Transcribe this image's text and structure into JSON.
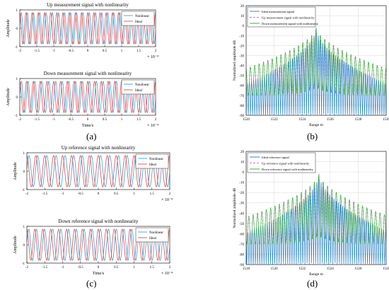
{
  "colors": {
    "nonlinear": "#3aa0d8",
    "ideal": "#e8484a",
    "spectrum_ideal": "#2f86c8",
    "spectrum_up": "#d86cd8",
    "spectrum_down": "#2db82d"
  },
  "subfig": {
    "a": "(a)",
    "b": "(b)",
    "c": "(c)",
    "d": "(d)"
  },
  "chart_data": [
    {
      "id": "a1",
      "type": "line",
      "title": "Up measurement signal with nonlinearity",
      "xlabel": "",
      "ylabel": "Amplitude",
      "xlim": [
        -2,
        2
      ],
      "ylim": [
        -1,
        1
      ],
      "x_ticks": [
        "-2",
        "-1.5",
        "-1",
        "-0.5",
        "0",
        "0.5",
        "1",
        "1.5",
        "2"
      ],
      "y_ticks": [
        "-1",
        "0",
        "1"
      ],
      "x_exponent": "× 10⁻⁴",
      "cycles": 22,
      "phase_shift": 0.25,
      "series": [
        {
          "name": "Nonlinear"
        },
        {
          "name": "Ideal"
        }
      ],
      "legend": "top-right"
    },
    {
      "id": "a2",
      "type": "line",
      "title": "Down measurement signal with nonlinearity",
      "xlabel": "Time/s",
      "ylabel": "Amplitude",
      "xlim": [
        -2,
        2
      ],
      "ylim": [
        -1,
        1
      ],
      "x_ticks": [
        "-2",
        "-1.5",
        "-1",
        "-0.5",
        "0",
        "0.5",
        "1",
        "1.5",
        "2"
      ],
      "y_ticks": [
        "-1",
        "0",
        "1"
      ],
      "x_exponent": "× 10⁻⁴",
      "cycles": 20,
      "phase_shift": 0.25,
      "series": [
        {
          "name": "Nonlinear"
        },
        {
          "name": "Ideal"
        }
      ],
      "legend": "top-right"
    },
    {
      "id": "b",
      "type": "line",
      "title": "",
      "xlabel": "Range m",
      "ylabel": "Normalized amplitude dB",
      "xlim": [
        1520,
        1530
      ],
      "ylim": [
        -90,
        20
      ],
      "x_ticks": [
        "1520",
        "1522",
        "1524",
        "1526",
        "1528",
        "1530"
      ],
      "y_ticks": [
        "20",
        "10",
        "0",
        "-10",
        "-20",
        "-30",
        "-40",
        "-50",
        "-60",
        "-70",
        "-80",
        "-90"
      ],
      "peak": 1525,
      "series": [
        {
          "name": "Ideal measurement signal"
        },
        {
          "name": "Up measurement signal with nonlinearity"
        },
        {
          "name": "Down measurement signal with nonlinearity"
        }
      ],
      "legend": "top-left"
    },
    {
      "id": "c1",
      "type": "line",
      "title": "Up reference signal with nonlinearity",
      "xlabel": "",
      "ylabel": "Amplitude",
      "xlim": [
        -2,
        2
      ],
      "ylim": [
        -1,
        1
      ],
      "x_ticks": [
        "-2",
        "-1.5",
        "-1",
        "-0.5",
        "0",
        "0.5",
        "1",
        "1.5",
        "2"
      ],
      "y_ticks": [
        "-1",
        "0",
        "1"
      ],
      "x_exponent": "× 10⁻⁴",
      "cycles": 16,
      "phase_shift": 0.25,
      "series": [
        {
          "name": "Nonlinear"
        },
        {
          "name": "Ideal"
        }
      ],
      "legend": "top-right"
    },
    {
      "id": "c2",
      "type": "line",
      "title": "Down reference signal with nonlinearity",
      "xlabel": "Time/s",
      "ylabel": "Amplitude",
      "xlim": [
        -2,
        2
      ],
      "ylim": [
        -1,
        1
      ],
      "x_ticks": [
        "-2",
        "-1.5",
        "-1",
        "-0.5",
        "0",
        "0.5",
        "1",
        "1.5",
        "2"
      ],
      "y_ticks": [
        "-1",
        "0",
        "1"
      ],
      "x_exponent": "× 10⁻⁴",
      "cycles": 18,
      "phase_shift": 0.25,
      "series": [
        {
          "name": "Nonlinear"
        },
        {
          "name": "Ideal"
        }
      ],
      "legend": "top-right"
    },
    {
      "id": "d",
      "type": "line",
      "title": "",
      "xlabel": "Range m",
      "ylabel": "Normalized amplitude dB",
      "xlim": [
        1518,
        1528
      ],
      "ylim": [
        -90,
        20
      ],
      "x_ticks": [
        "1518",
        "1520",
        "1522",
        "1524",
        "1526",
        "1528"
      ],
      "y_ticks": [
        "20",
        "10",
        "0",
        "-10",
        "-20",
        "-30",
        "-40",
        "-50",
        "-60",
        "-70",
        "-80",
        "-90"
      ],
      "peak": 1523.2,
      "series": [
        {
          "name": "Ideal reference signal"
        },
        {
          "name": "Up reference signal with nonlinearity"
        },
        {
          "name": "Down reference signal with nonlinearity"
        }
      ],
      "legend": "top-left"
    }
  ]
}
